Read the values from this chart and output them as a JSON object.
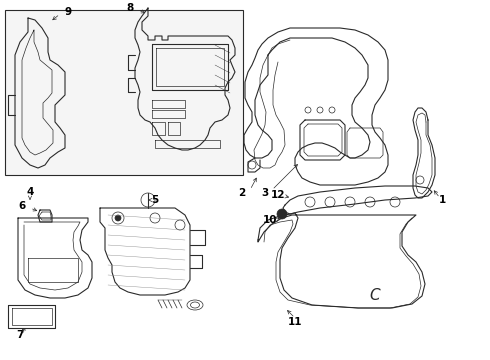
{
  "background_color": "#ffffff",
  "line_color": "#2a2a2a",
  "label_color": "#000000",
  "label_fontsize": 7.5,
  "fig_width": 4.9,
  "fig_height": 3.6,
  "dpi": 100
}
